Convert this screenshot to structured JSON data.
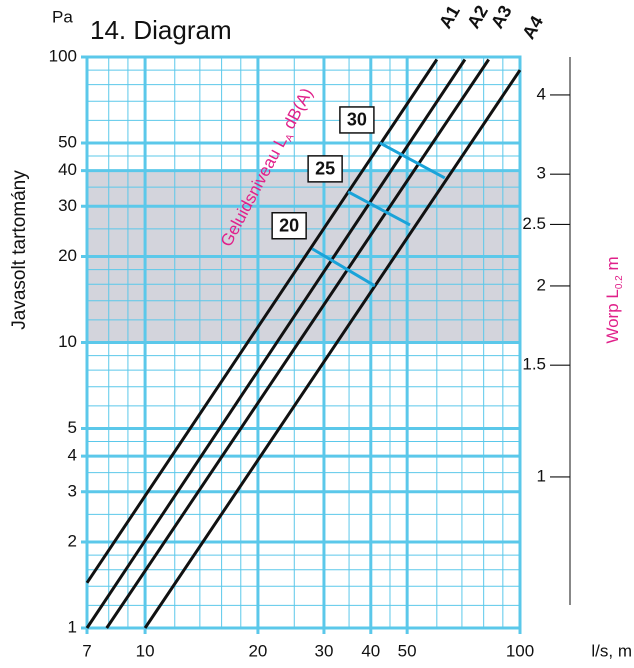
{
  "chart_data": {
    "type": "line",
    "title": "14. Diagram",
    "y_unit": "Pa",
    "y_label": "Javasolt tartomány",
    "x_label": "l/s, m",
    "y2_label": {
      "text": "Worp L",
      "sub": "0.2",
      "suffix": " m"
    },
    "level_label": {
      "text": "Geluidsniveau L",
      "sub": "A",
      "suffix": " dB(A)"
    },
    "xlog": true,
    "ylog": true,
    "y2log": true,
    "xlim": [
      7,
      100
    ],
    "ylim": [
      1,
      100
    ],
    "y2lim": [
      0.578,
      4.59
    ],
    "xticks": [
      7,
      10,
      20,
      30,
      40,
      50,
      100
    ],
    "yticks": [
      1,
      2,
      3,
      4,
      5,
      10,
      20,
      30,
      40,
      50,
      100
    ],
    "y2ticks": [
      1,
      1.5,
      2,
      2.5,
      3,
      4
    ],
    "xminorticks": [
      8,
      9,
      12,
      14,
      16,
      18,
      25,
      35,
      45,
      60,
      70,
      80,
      90
    ],
    "yminorticks": [
      1.2,
      1.4,
      1.6,
      1.8,
      2.5,
      3.5,
      4.5,
      6,
      7,
      8,
      9,
      12,
      14,
      16,
      18,
      25,
      35,
      45,
      60,
      70,
      80,
      90
    ],
    "grid_color": "#5bc8ea",
    "band": {
      "range": [
        10,
        40
      ],
      "color": "#d3d4dc"
    },
    "series": [
      {
        "name": "A1",
        "color": "#111111",
        "x": [
          7,
          60
        ],
        "values": [
          1.44,
          98
        ]
      },
      {
        "name": "A2",
        "color": "#111111",
        "x": [
          7,
          71.3
        ],
        "values": [
          1,
          98
        ]
      },
      {
        "name": "A3",
        "color": "#111111",
        "x": [
          7.9,
          82.5
        ],
        "values": [
          1,
          98
        ]
      },
      {
        "name": "A4",
        "color": "#111111",
        "x": [
          10,
          100
        ],
        "values": [
          1,
          90
        ]
      }
    ],
    "levels": [
      {
        "label": "30",
        "color": "#1aa3d9",
        "x": [
          42.3,
          63
        ],
        "values": [
          50,
          37.7
        ]
      },
      {
        "label": "25",
        "color": "#1aa3d9",
        "x": [
          34.8,
          50.9
        ],
        "values": [
          33.7,
          25.8
        ]
      },
      {
        "label": "20",
        "color": "#1aa3d9",
        "x": [
          27.9,
          41
        ],
        "values": [
          21.3,
          15.8
        ]
      }
    ]
  }
}
